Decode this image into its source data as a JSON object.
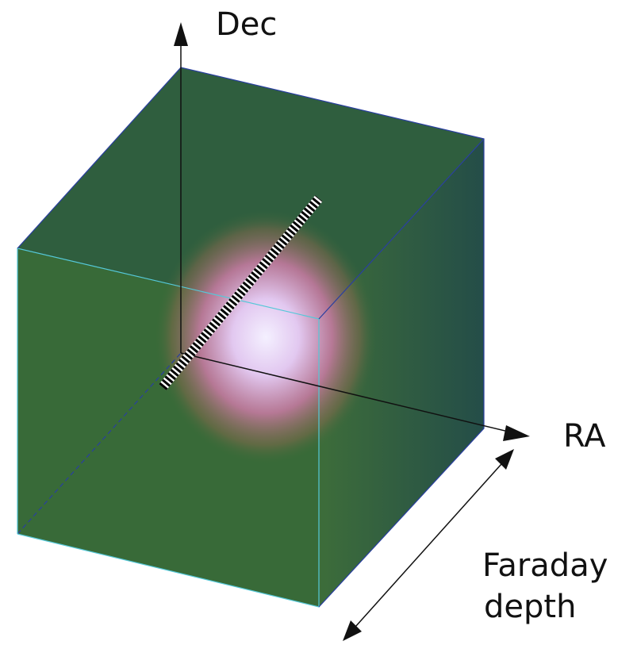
{
  "labels": {
    "dec": "Dec",
    "ra": "RA",
    "faraday_depth": [
      "Faraday",
      "depth"
    ]
  }
}
